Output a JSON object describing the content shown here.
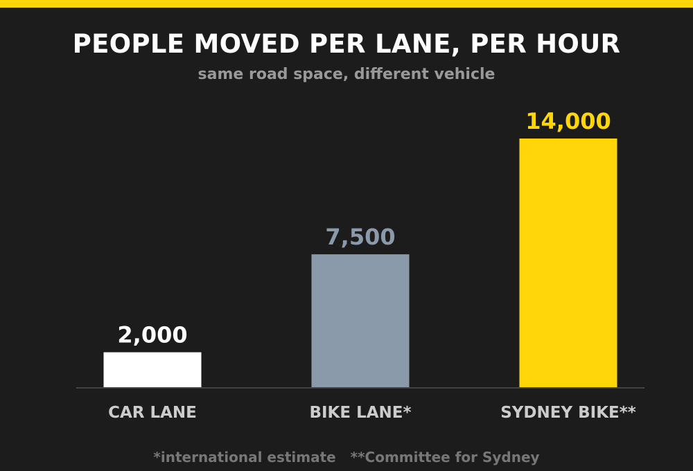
{
  "title": "PEOPLE MOVED PER LANE, PER HOUR",
  "subtitle": "same road space, different vehicle",
  "footnotes": "*international estimate   **Committee for Sydney",
  "colors": {
    "background": "#1c1c1c",
    "accent": "#ffd60a",
    "axis": "#444444"
  },
  "chart_data": {
    "type": "bar",
    "title": "PEOPLE MOVED PER LANE, PER HOUR",
    "subtitle": "same road space, different vehicle",
    "categories": [
      "CAR LANE",
      "BIKE LANE*",
      "SYDNEY BIKE**"
    ],
    "values": [
      2000,
      7500,
      14000
    ],
    "value_labels": [
      "2,000",
      "7,500",
      "14,000"
    ],
    "bar_colors": [
      "#ffffff",
      "#8a9aaa",
      "#ffd60a"
    ],
    "ylim": [
      0,
      15000
    ],
    "grid": false,
    "legend": "none",
    "xlabel": "",
    "ylabel": ""
  }
}
